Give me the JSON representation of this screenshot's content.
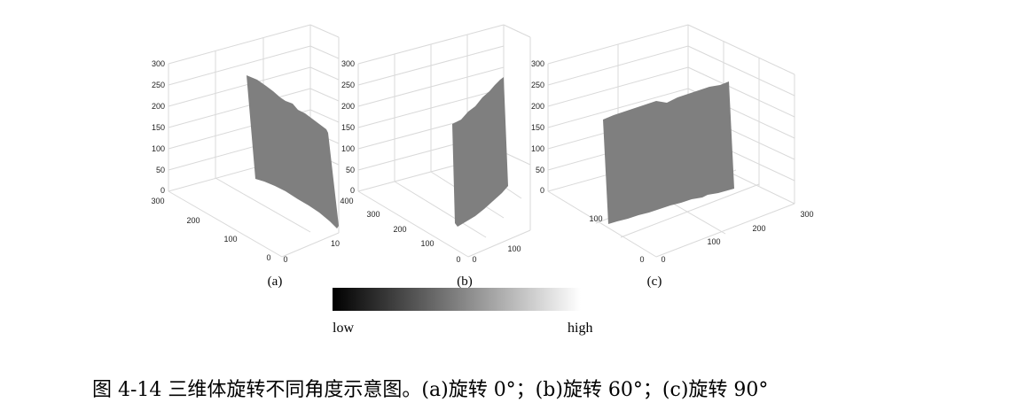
{
  "chart_data": [
    {
      "type": "surface3d",
      "label": "(a)",
      "z_ticks": [
        "0",
        "50",
        "100",
        "150",
        "200",
        "250",
        "300"
      ],
      "y_ticks": [
        "0",
        "100",
        "200",
        "300"
      ],
      "x_ticks": [
        "0",
        "10"
      ],
      "rotation_deg": 0
    },
    {
      "type": "surface3d",
      "label": "(b)",
      "z_ticks": [
        "0",
        "50",
        "100",
        "150",
        "200",
        "250",
        "300"
      ],
      "y_ticks": [
        "0",
        "100",
        "200",
        "300",
        "400"
      ],
      "x_ticks": [
        "0",
        "100"
      ],
      "rotation_deg": 60
    },
    {
      "type": "surface3d",
      "label": "(c)",
      "z_ticks": [
        "0",
        "50",
        "100",
        "150",
        "200",
        "250",
        "300"
      ],
      "y_ticks": [
        "0",
        "100"
      ],
      "x_ticks": [
        "0",
        "100",
        "200",
        "300"
      ],
      "rotation_deg": 90
    }
  ],
  "colorbar": {
    "low_label": "low",
    "high_label": "high",
    "start_color": "#000000",
    "end_color": "#ffffff"
  },
  "surface_color": "#7f7f7f",
  "caption": "图 4-14 三维体旋转不同角度示意图。(a)旋转 0°；(b)旋转 60°；(c)旋转 90°"
}
